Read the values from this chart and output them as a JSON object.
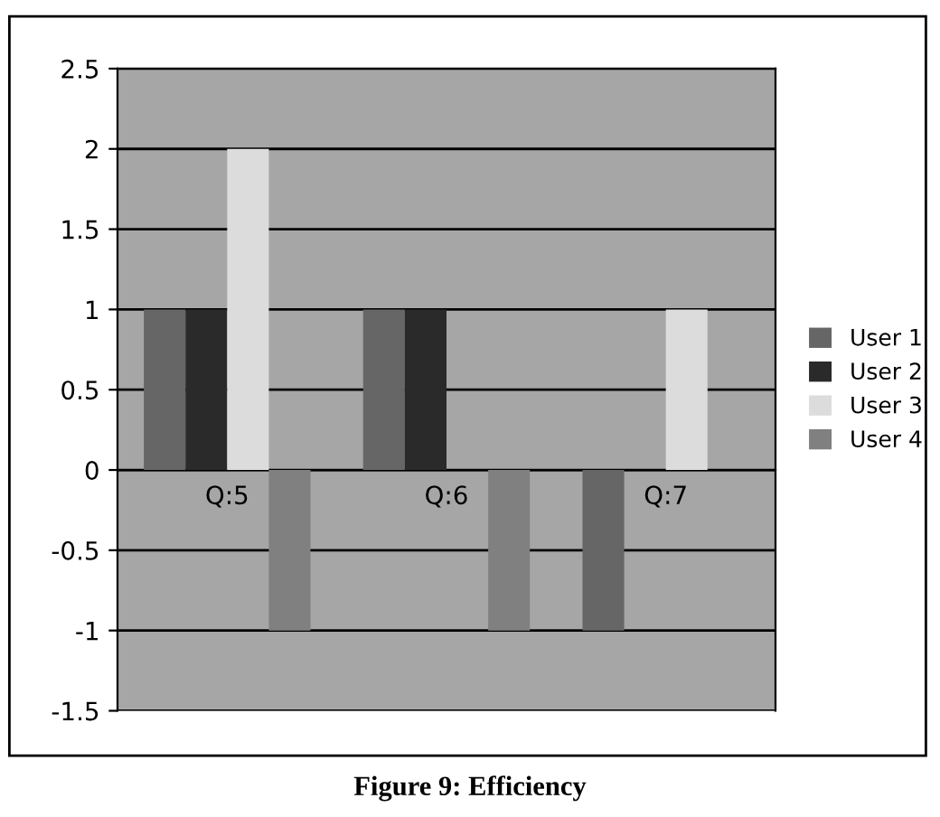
{
  "chart_data": {
    "type": "bar",
    "title": "Figure 9: Efficiency",
    "categories": [
      "Q:5",
      "Q:6",
      "Q:7"
    ],
    "series": [
      {
        "name": "User 1",
        "color": "#666666",
        "values": [
          1,
          1,
          -1
        ]
      },
      {
        "name": "User 2",
        "color": "#2a2a2a",
        "values": [
          1,
          1,
          0
        ]
      },
      {
        "name": "User 3",
        "color": "#dcdcdc",
        "values": [
          2,
          0,
          1
        ]
      },
      {
        "name": "User 4",
        "color": "#808080",
        "values": [
          -1,
          -1,
          0
        ]
      }
    ],
    "ylim": [
      -1.5,
      2.5
    ],
    "yticks": [
      -1.5,
      -1,
      -0.5,
      0,
      0.5,
      1,
      1.5,
      2,
      2.5
    ],
    "grid": "y",
    "legend": "right"
  }
}
